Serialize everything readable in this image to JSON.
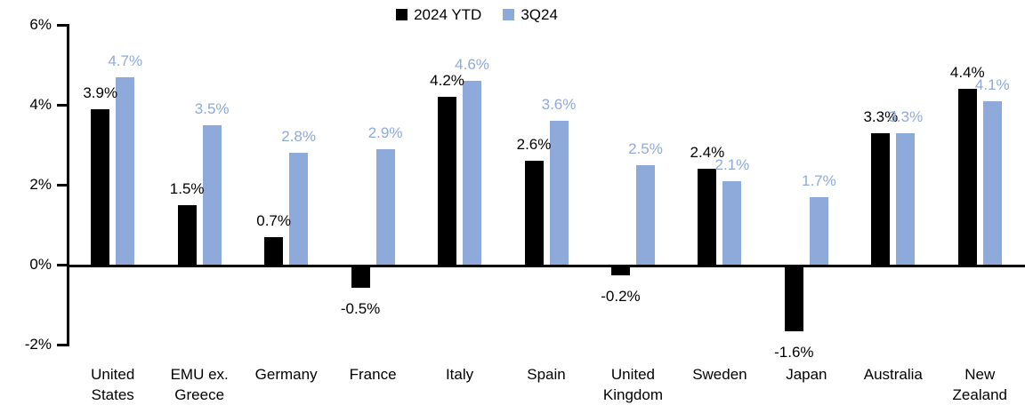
{
  "chart_data": {
    "type": "bar",
    "title": "",
    "xlabel": "",
    "ylabel": "",
    "categories": [
      "United States",
      "EMU ex. Greece",
      "Germany",
      "France",
      "Italy",
      "Spain",
      "United Kingdom",
      "Sweden",
      "Japan",
      "Australia",
      "New Zealand"
    ],
    "category_display_lines": [
      [
        "United",
        "States"
      ],
      [
        "EMU ex.",
        "Greece"
      ],
      [
        "Germany"
      ],
      [
        "France"
      ],
      [
        "Italy"
      ],
      [
        "Spain"
      ],
      [
        "United",
        "Kingdom"
      ],
      [
        "Sweden"
      ],
      [
        "Japan"
      ],
      [
        "Australia"
      ],
      [
        "New",
        "Zealand"
      ]
    ],
    "series": [
      {
        "name": "2024 YTD",
        "color": "#000000",
        "label_color": "#000000",
        "values": [
          3.9,
          1.5,
          0.7,
          -0.5,
          4.2,
          2.6,
          -0.2,
          2.4,
          -1.6,
          3.3,
          4.4
        ],
        "labels": [
          "3.9%",
          "1.5%",
          "0.7%",
          "-0.5%",
          "4.2%",
          "2.6%",
          "-0.2%",
          "2.4%",
          "-1.6%",
          "3.3%",
          "4.4%"
        ]
      },
      {
        "name": "3Q24",
        "color": "#8EAADB",
        "label_color": "#8EAADB",
        "values": [
          4.7,
          3.5,
          2.8,
          2.9,
          4.6,
          3.6,
          2.5,
          2.1,
          1.7,
          3.3,
          4.1
        ],
        "labels": [
          "4.7%",
          "3.5%",
          "2.8%",
          "2.9%",
          "4.6%",
          "3.6%",
          "2.5%",
          "2.1%",
          "1.7%",
          "3.3%",
          "4.1%"
        ]
      }
    ],
    "y_axis": {
      "tick_labels": [
        "6%",
        "4%",
        "2%",
        "0%",
        "-2%"
      ],
      "tick_values": [
        6,
        4,
        2,
        0,
        -2
      ],
      "ylim": [
        -2,
        6
      ]
    },
    "grid": "off",
    "legend_position": "top-center",
    "value_suffix": "%"
  },
  "colors": {
    "background": "#FFFFFF",
    "axis": "#000000",
    "series_2024_ytd": "#000000",
    "series_3q24": "#8EAADB"
  }
}
